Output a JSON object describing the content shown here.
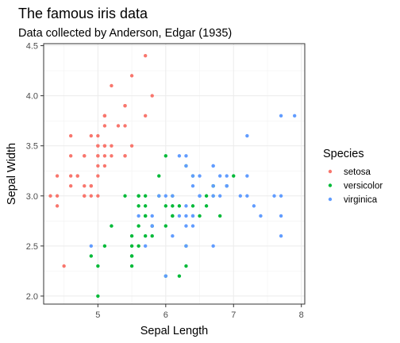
{
  "chart_data": {
    "type": "scatter",
    "title": "The famous iris data",
    "subtitle": "Data collected by Anderson, Edgar (1935)",
    "xlabel": "Sepal Length",
    "ylabel": "Sepal Width",
    "xlim": [
      4.2,
      8.05
    ],
    "ylim": [
      1.92,
      4.52
    ],
    "x_ticks": [
      5,
      6,
      7,
      8
    ],
    "y_ticks": [
      2.0,
      2.5,
      3.0,
      3.5,
      4.0,
      4.5
    ],
    "x_tick_labels": [
      "5",
      "6",
      "7",
      "8"
    ],
    "y_tick_labels": [
      "2.0",
      "2.5",
      "3.0",
      "3.5",
      "4.0",
      "4.5"
    ],
    "grid": true,
    "legend": {
      "title": "Species",
      "position": "right"
    },
    "series": [
      {
        "name": "setosa",
        "color": "#F8766D",
        "points": [
          [
            5.1,
            3.5
          ],
          [
            4.9,
            3.0
          ],
          [
            4.7,
            3.2
          ],
          [
            4.6,
            3.1
          ],
          [
            5.0,
            3.6
          ],
          [
            5.4,
            3.9
          ],
          [
            4.6,
            3.4
          ],
          [
            5.0,
            3.4
          ],
          [
            4.4,
            2.9
          ],
          [
            4.9,
            3.1
          ],
          [
            5.4,
            3.7
          ],
          [
            4.8,
            3.4
          ],
          [
            4.8,
            3.0
          ],
          [
            4.3,
            3.0
          ],
          [
            5.8,
            4.0
          ],
          [
            5.7,
            4.4
          ],
          [
            5.4,
            3.9
          ],
          [
            5.1,
            3.5
          ],
          [
            5.7,
            3.8
          ],
          [
            5.1,
            3.8
          ],
          [
            5.4,
            3.4
          ],
          [
            5.1,
            3.7
          ],
          [
            4.6,
            3.6
          ],
          [
            5.1,
            3.3
          ],
          [
            4.8,
            3.4
          ],
          [
            5.0,
            3.0
          ],
          [
            5.0,
            3.4
          ],
          [
            5.2,
            3.5
          ],
          [
            5.2,
            3.4
          ],
          [
            4.7,
            3.2
          ],
          [
            4.8,
            3.1
          ],
          [
            5.4,
            3.4
          ],
          [
            5.2,
            4.1
          ],
          [
            5.5,
            4.2
          ],
          [
            4.9,
            3.1
          ],
          [
            5.0,
            3.2
          ],
          [
            5.5,
            3.5
          ],
          [
            4.9,
            3.6
          ],
          [
            4.4,
            3.0
          ],
          [
            5.1,
            3.4
          ],
          [
            5.0,
            3.5
          ],
          [
            4.5,
            2.3
          ],
          [
            4.4,
            3.2
          ],
          [
            5.0,
            3.5
          ],
          [
            5.1,
            3.8
          ],
          [
            4.8,
            3.0
          ],
          [
            5.1,
            3.8
          ],
          [
            4.6,
            3.2
          ],
          [
            5.3,
            3.7
          ],
          [
            5.0,
            3.3
          ]
        ]
      },
      {
        "name": "versicolor",
        "color": "#00BA38",
        "points": [
          [
            7.0,
            3.2
          ],
          [
            6.4,
            3.2
          ],
          [
            6.9,
            3.1
          ],
          [
            5.5,
            2.3
          ],
          [
            6.5,
            2.8
          ],
          [
            5.7,
            2.8
          ],
          [
            6.3,
            3.3
          ],
          [
            4.9,
            2.4
          ],
          [
            6.6,
            2.9
          ],
          [
            5.2,
            2.7
          ],
          [
            5.0,
            2.0
          ],
          [
            5.9,
            3.0
          ],
          [
            6.0,
            2.2
          ],
          [
            6.1,
            2.9
          ],
          [
            5.6,
            2.9
          ],
          [
            6.7,
            3.1
          ],
          [
            5.6,
            3.0
          ],
          [
            5.8,
            2.7
          ],
          [
            6.2,
            2.2
          ],
          [
            5.6,
            2.5
          ],
          [
            5.9,
            3.2
          ],
          [
            6.1,
            2.8
          ],
          [
            6.3,
            2.5
          ],
          [
            6.1,
            2.8
          ],
          [
            6.4,
            2.9
          ],
          [
            6.6,
            3.0
          ],
          [
            6.8,
            2.8
          ],
          [
            6.7,
            3.0
          ],
          [
            6.0,
            2.9
          ],
          [
            5.7,
            2.6
          ],
          [
            5.5,
            2.4
          ],
          [
            5.5,
            2.4
          ],
          [
            5.8,
            2.7
          ],
          [
            6.0,
            2.7
          ],
          [
            5.4,
            3.0
          ],
          [
            6.0,
            3.4
          ],
          [
            6.7,
            3.1
          ],
          [
            6.3,
            2.3
          ],
          [
            5.6,
            3.0
          ],
          [
            5.5,
            2.5
          ],
          [
            5.5,
            2.6
          ],
          [
            6.1,
            3.0
          ],
          [
            5.8,
            2.6
          ],
          [
            5.0,
            2.3
          ],
          [
            5.6,
            2.7
          ],
          [
            5.7,
            3.0
          ],
          [
            5.7,
            2.9
          ],
          [
            6.2,
            2.9
          ],
          [
            5.1,
            2.5
          ],
          [
            5.7,
            2.8
          ]
        ]
      },
      {
        "name": "virginica",
        "color": "#619CFF",
        "points": [
          [
            6.3,
            3.3
          ],
          [
            5.8,
            2.7
          ],
          [
            7.1,
            3.0
          ],
          [
            6.3,
            2.9
          ],
          [
            6.5,
            3.0
          ],
          [
            7.6,
            3.0
          ],
          [
            4.9,
            2.5
          ],
          [
            7.3,
            2.9
          ],
          [
            6.7,
            2.5
          ],
          [
            7.2,
            3.6
          ],
          [
            6.5,
            3.2
          ],
          [
            6.4,
            2.7
          ],
          [
            6.8,
            3.0
          ],
          [
            5.7,
            2.5
          ],
          [
            5.8,
            2.8
          ],
          [
            6.4,
            3.2
          ],
          [
            6.5,
            3.0
          ],
          [
            7.7,
            3.8
          ],
          [
            7.7,
            2.6
          ],
          [
            6.0,
            2.2
          ],
          [
            6.9,
            3.2
          ],
          [
            5.6,
            2.8
          ],
          [
            7.7,
            2.8
          ],
          [
            6.3,
            2.7
          ],
          [
            6.7,
            3.3
          ],
          [
            7.2,
            3.2
          ],
          [
            6.2,
            2.8
          ],
          [
            6.1,
            3.0
          ],
          [
            6.4,
            2.8
          ],
          [
            7.2,
            3.0
          ],
          [
            7.4,
            2.8
          ],
          [
            7.9,
            3.8
          ],
          [
            6.4,
            2.8
          ],
          [
            6.3,
            2.8
          ],
          [
            6.1,
            2.6
          ],
          [
            7.7,
            3.0
          ],
          [
            6.3,
            3.4
          ],
          [
            6.4,
            3.1
          ],
          [
            6.0,
            3.0
          ],
          [
            6.9,
            3.1
          ],
          [
            6.7,
            3.1
          ],
          [
            6.9,
            3.1
          ],
          [
            5.8,
            2.7
          ],
          [
            6.8,
            3.2
          ],
          [
            6.7,
            3.3
          ],
          [
            6.7,
            3.0
          ],
          [
            6.3,
            2.5
          ],
          [
            6.5,
            3.0
          ],
          [
            6.2,
            3.4
          ],
          [
            5.9,
            3.0
          ]
        ]
      }
    ]
  }
}
